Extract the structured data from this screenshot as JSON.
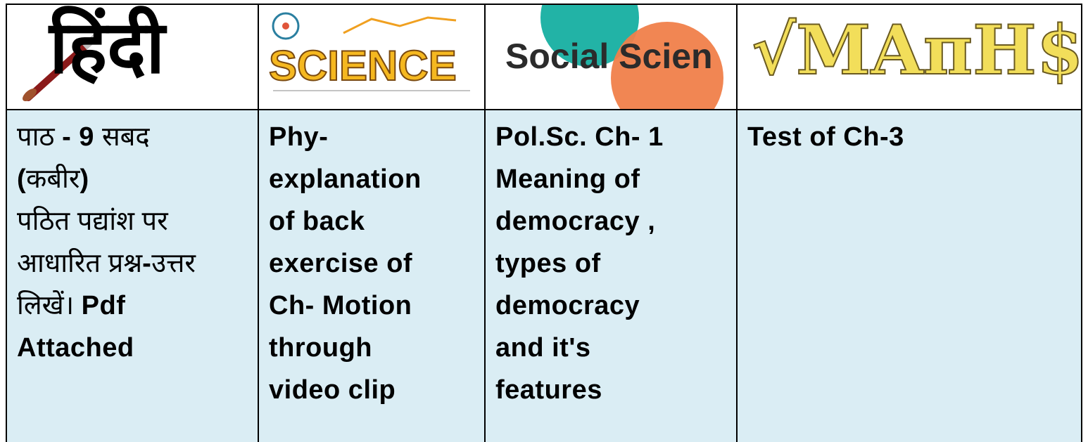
{
  "header": {
    "cells": [
      "हिंदी",
      "SCIENCE",
      "Social Scien",
      "√MAπH$"
    ]
  },
  "body": {
    "cells": [
      {
        "lines": [
          [
            {
              "text": "पाठ ",
              "bold": false
            },
            {
              "text": "- 9 ",
              "bold": true
            },
            {
              "text": "सबद",
              "bold": false
            }
          ],
          [
            {
              "text": "(",
              "bold": true
            },
            {
              "text": "कबीर",
              "bold": false
            },
            {
              "text": ")",
              "bold": true
            }
          ],
          [
            {
              "text": "पठित पद्यांश पर",
              "bold": false
            }
          ],
          [
            {
              "text": "आधारित प्रश्न",
              "bold": false
            },
            {
              "text": "-",
              "bold": true
            },
            {
              "text": "उत्तर",
              "bold": false
            }
          ],
          [
            {
              "text": "लिखें। ",
              "bold": false
            },
            {
              "text": "Pdf",
              "bold": true
            }
          ],
          [
            {
              "text": "Attached",
              "bold": true
            }
          ]
        ]
      },
      {
        "lines": [
          "Phy-",
          "explanation",
          "of back",
          "exercise of",
          "Ch- Motion",
          "through",
          "video clip"
        ]
      },
      {
        "lines": [
          "Pol.Sc. Ch- 1",
          "Meaning of",
          "democracy ,",
          "types of",
          "democracy",
          "and it's",
          "features"
        ]
      },
      {
        "lines": [
          "Test of Ch-3"
        ]
      }
    ]
  }
}
